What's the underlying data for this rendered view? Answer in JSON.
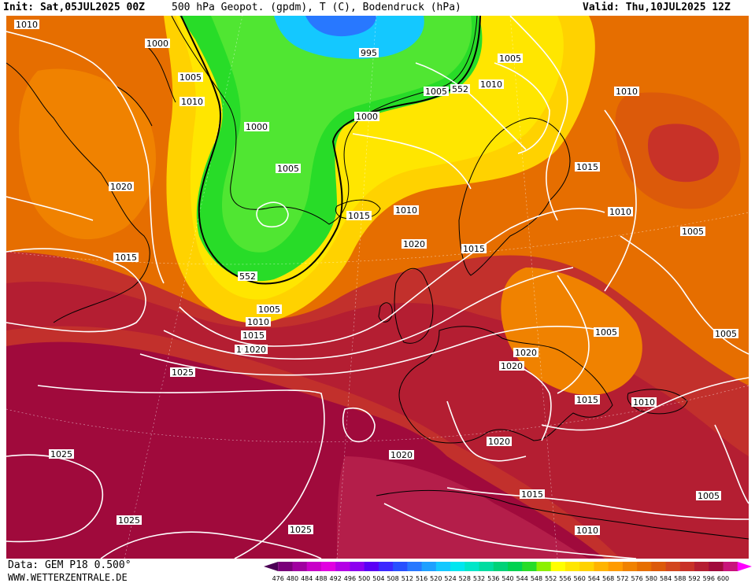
{
  "header": {
    "init": "Init: Sat,05JUL2025 00Z",
    "title": "500 hPa Geopot. (gpdm), T (C), Bodendruck (hPa)",
    "valid": "Valid: Thu,10JUL2025 12Z"
  },
  "footer": {
    "data_source": "Data: GEM P18 0.500°",
    "website": "WWW.WETTERZENTRALE.DE"
  },
  "colorbar": {
    "levels": [
      "476",
      "480",
      "484",
      "488",
      "492",
      "496",
      "500",
      "504",
      "508",
      "512",
      "516",
      "520",
      "524",
      "528",
      "532",
      "536",
      "540",
      "544",
      "548",
      "552",
      "556",
      "560",
      "564",
      "568",
      "572",
      "576",
      "580",
      "584",
      "588",
      "592",
      "596",
      "600"
    ],
    "colors": [
      "#4b0055",
      "#7a007a",
      "#a000a0",
      "#c800c8",
      "#e100e1",
      "#b400e6",
      "#8c00f0",
      "#5a00f5",
      "#3c28ff",
      "#2850ff",
      "#2878ff",
      "#1ea0ff",
      "#14c8ff",
      "#00e6f0",
      "#00e6c8",
      "#00dca0",
      "#00d278",
      "#00d250",
      "#28dc28",
      "#8cf000",
      "#ffff00",
      "#ffe600",
      "#ffd200",
      "#ffb400",
      "#ff9b00",
      "#f08200",
      "#e66e00",
      "#dc5a0a",
      "#d2461e",
      "#c83228",
      "#b41e32",
      "#a00a3c",
      "#c8147a",
      "#ff00ff"
    ]
  },
  "map": {
    "colors": {
      "ocean_deep": "#c2302c",
      "red_dark": "#b41e32",
      "crimson": "#a00a3c",
      "orange": "#e66e00",
      "orange_light": "#f08200",
      "amber": "#ff9b00",
      "yellow": "#ffe600",
      "green": "#28dc28",
      "green_light": "#50e632",
      "cyan": "#14c8ff",
      "blue": "#2878ff",
      "isobar": "#ffffff",
      "coast": "#000000"
    },
    "contour_labels": [
      {
        "id": "l1",
        "text": "1010"
      },
      {
        "id": "l2",
        "text": "1000"
      },
      {
        "id": "l3",
        "text": "1005"
      },
      {
        "id": "l4",
        "text": "1010"
      },
      {
        "id": "l5",
        "text": "1000"
      },
      {
        "id": "l6",
        "text": "1005"
      },
      {
        "id": "l7",
        "text": "1020"
      },
      {
        "id": "l8",
        "text": "1015"
      },
      {
        "id": "l9",
        "text": "552"
      },
      {
        "id": "l10",
        "text": "1005"
      },
      {
        "id": "l11",
        "text": "1010"
      },
      {
        "id": "l12",
        "text": "1015"
      },
      {
        "id": "l13",
        "text": "1020"
      },
      {
        "id": "l14",
        "text": "1025"
      },
      {
        "id": "l15",
        "text": "1025"
      },
      {
        "id": "l16",
        "text": "1025"
      },
      {
        "id": "l17",
        "text": "1025"
      },
      {
        "id": "l18",
        "text": "995"
      },
      {
        "id": "l19",
        "text": "1005"
      },
      {
        "id": "l20",
        "text": "552"
      },
      {
        "id": "l21",
        "text": "1010"
      },
      {
        "id": "l22",
        "text": "1000"
      },
      {
        "id": "l23",
        "text": "1015"
      },
      {
        "id": "l24",
        "text": "1010"
      },
      {
        "id": "l25",
        "text": "1020"
      },
      {
        "id": "l26",
        "text": "1015"
      },
      {
        "id": "l27",
        "text": "1005"
      },
      {
        "id": "l28",
        "text": "1010"
      },
      {
        "id": "l29",
        "text": "1015"
      },
      {
        "id": "l30",
        "text": "1010"
      },
      {
        "id": "l31",
        "text": "1005"
      },
      {
        "id": "l32",
        "text": "1005"
      },
      {
        "id": "l33",
        "text": "1005"
      },
      {
        "id": "l34",
        "text": "1020"
      },
      {
        "id": "l35",
        "text": "1020"
      },
      {
        "id": "l36",
        "text": "1020"
      },
      {
        "id": "l37",
        "text": "1015"
      },
      {
        "id": "l38",
        "text": "1010"
      },
      {
        "id": "l39",
        "text": "1020"
      },
      {
        "id": "l40",
        "text": "1020"
      },
      {
        "id": "l41",
        "text": "1015"
      },
      {
        "id": "l42",
        "text": "1010"
      },
      {
        "id": "l43",
        "text": "1005"
      }
    ]
  }
}
